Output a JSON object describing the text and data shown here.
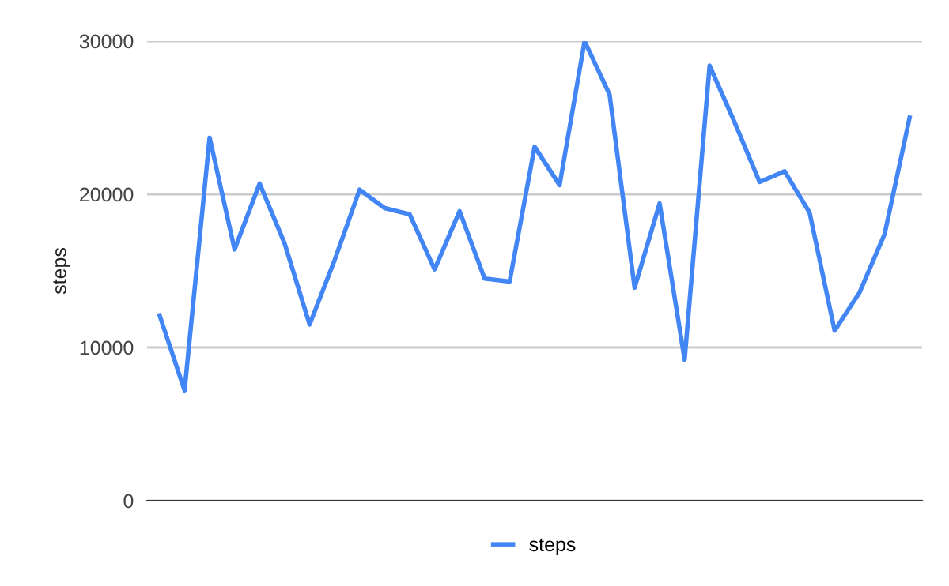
{
  "chart_data": {
    "type": "line",
    "ylabel": "steps",
    "categories": [
      null,
      null,
      null,
      null,
      null,
      null,
      null,
      null,
      null,
      null,
      null,
      null,
      null,
      null,
      null,
      null,
      null,
      null,
      null,
      null,
      null,
      null,
      null,
      null,
      null,
      null,
      null,
      null,
      null,
      null,
      null
    ],
    "series": [
      {
        "name": "steps",
        "color": "#4285f4",
        "values": [
          12100,
          7200,
          23700,
          16400,
          20700,
          16800,
          11500,
          15700,
          20300,
          19100,
          18700,
          15100,
          18900,
          14500,
          14300,
          23100,
          20600,
          30000,
          26500,
          13900,
          19400,
          9200,
          28400,
          24700,
          20800,
          21500,
          18800,
          11100,
          13600,
          17400,
          25000
        ]
      }
    ],
    "ylim": [
      0,
      30000
    ],
    "yticks": [
      0,
      10000,
      20000,
      30000
    ],
    "grid": "y",
    "legend": "bottom",
    "marker": "none",
    "line_style": "solid"
  }
}
